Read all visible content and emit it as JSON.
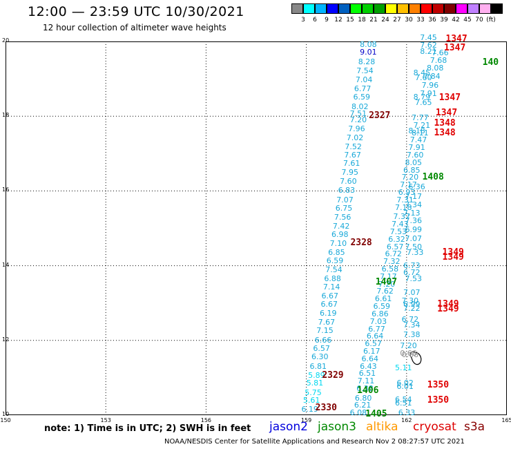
{
  "header": {
    "title": "12:00 — 23:59 UTC 10/30/2021",
    "subtitle": "12 hour collection of altimeter wave heights"
  },
  "legend": {
    "colors": [
      "#888888",
      "#00ffff",
      "#00b4ff",
      "#0000ff",
      "#0060c0",
      "#00ff00",
      "#00d000",
      "#00a000",
      "#ffff00",
      "#ffc000",
      "#ff8000",
      "#ff0000",
      "#c00000",
      "#800000",
      "#ff00ff",
      "#c080ff",
      "#ffb0f0",
      "#000000"
    ],
    "labels": [
      "3",
      "6",
      "9",
      "12",
      "15",
      "18",
      "21",
      "24",
      "27",
      "30",
      "33",
      "36",
      "39",
      "42",
      "45",
      "70",
      "(ft)"
    ]
  },
  "map": {
    "x_ticks": [
      "150",
      "153",
      "156",
      "159",
      "162",
      "165"
    ],
    "y_ticks": [
      "20",
      "18",
      "16",
      "14",
      "12",
      "10"
    ],
    "x_range": [
      150,
      165
    ],
    "y_range": [
      10,
      20
    ]
  },
  "measurements": [
    {
      "t": "8.08",
      "lon": 160.85,
      "lat": 19.9,
      "c": "#18a8d8"
    },
    {
      "t": "9.01",
      "lon": 160.85,
      "lat": 19.7,
      "c": "#0000c8"
    },
    {
      "t": "8.28",
      "lon": 160.8,
      "lat": 19.45,
      "c": "#18a8d8"
    },
    {
      "t": "7.54",
      "lon": 160.75,
      "lat": 19.2,
      "c": "#18a8d8"
    },
    {
      "t": "7.04",
      "lon": 160.72,
      "lat": 18.97,
      "c": "#18a8d8"
    },
    {
      "t": "6.77",
      "lon": 160.68,
      "lat": 18.73,
      "c": "#18a8d8"
    },
    {
      "t": "6.59",
      "lon": 160.65,
      "lat": 18.5,
      "c": "#18a8d8"
    },
    {
      "t": "8.02",
      "lon": 160.6,
      "lat": 18.25,
      "c": "#18a8d8"
    },
    {
      "t": "7.51",
      "lon": 160.55,
      "lat": 18.05,
      "c": "#18a8d8"
    },
    {
      "t": "7.20",
      "lon": 160.55,
      "lat": 17.9,
      "c": "#18a8d8"
    },
    {
      "t": "7.96",
      "lon": 160.5,
      "lat": 17.65,
      "c": "#18a8d8"
    },
    {
      "t": "7.02",
      "lon": 160.45,
      "lat": 17.42,
      "c": "#18a8d8"
    },
    {
      "t": "7.52",
      "lon": 160.4,
      "lat": 17.18,
      "c": "#18a8d8"
    },
    {
      "t": "7.67",
      "lon": 160.38,
      "lat": 16.95,
      "c": "#18a8d8"
    },
    {
      "t": "7.61",
      "lon": 160.35,
      "lat": 16.72,
      "c": "#18a8d8"
    },
    {
      "t": "7.95",
      "lon": 160.3,
      "lat": 16.48,
      "c": "#18a8d8"
    },
    {
      "t": "7.60",
      "lon": 160.25,
      "lat": 16.25,
      "c": "#18a8d8"
    },
    {
      "t": "6.83",
      "lon": 160.2,
      "lat": 16.0,
      "c": "#18a8d8"
    },
    {
      "t": "7.07",
      "lon": 160.15,
      "lat": 15.75,
      "c": "#18a8d8"
    },
    {
      "t": "6.75",
      "lon": 160.12,
      "lat": 15.52,
      "c": "#18a8d8"
    },
    {
      "t": "7.56",
      "lon": 160.08,
      "lat": 15.28,
      "c": "#18a8d8"
    },
    {
      "t": "7.42",
      "lon": 160.04,
      "lat": 15.05,
      "c": "#18a8d8"
    },
    {
      "t": "6.98",
      "lon": 160.0,
      "lat": 14.82,
      "c": "#18a8d8"
    },
    {
      "t": "7.10",
      "lon": 159.95,
      "lat": 14.58,
      "c": "#18a8d8"
    },
    {
      "t": "6.85",
      "lon": 159.9,
      "lat": 14.35,
      "c": "#18a8d8"
    },
    {
      "t": "6.59",
      "lon": 159.85,
      "lat": 14.12,
      "c": "#18a8d8"
    },
    {
      "t": "7.54",
      "lon": 159.82,
      "lat": 13.88,
      "c": "#18a8d8"
    },
    {
      "t": "6.88",
      "lon": 159.78,
      "lat": 13.65,
      "c": "#18a8d8"
    },
    {
      "t": "7.14",
      "lon": 159.75,
      "lat": 13.42,
      "c": "#18a8d8"
    },
    {
      "t": "6.67",
      "lon": 159.7,
      "lat": 13.18,
      "c": "#18a8d8"
    },
    {
      "t": "6.67",
      "lon": 159.68,
      "lat": 12.95,
      "c": "#18a8d8"
    },
    {
      "t": "6.19",
      "lon": 159.65,
      "lat": 12.72,
      "c": "#18a8d8"
    },
    {
      "t": "7.67",
      "lon": 159.6,
      "lat": 12.48,
      "c": "#18a8d8"
    },
    {
      "t": "7.15",
      "lon": 159.55,
      "lat": 12.25,
      "c": "#18a8d8"
    },
    {
      "t": "6.66",
      "lon": 159.5,
      "lat": 12.0,
      "c": "#18a8d8"
    },
    {
      "t": "6.57",
      "lon": 159.45,
      "lat": 11.78,
      "c": "#18a8d8"
    },
    {
      "t": "6.30",
      "lon": 159.4,
      "lat": 11.55,
      "c": "#18a8d8"
    },
    {
      "t": "6.81",
      "lon": 159.35,
      "lat": 11.3,
      "c": "#18a8d8"
    },
    {
      "t": "5.89",
      "lon": 159.3,
      "lat": 11.05,
      "c": "#00d8f0"
    },
    {
      "t": "5.81",
      "lon": 159.25,
      "lat": 10.85,
      "c": "#00d8f0"
    },
    {
      "t": "5.75",
      "lon": 159.2,
      "lat": 10.6,
      "c": "#00d8f0"
    },
    {
      "t": "5.61",
      "lon": 159.15,
      "lat": 10.38,
      "c": "#00d8f0"
    },
    {
      "t": "6.19",
      "lon": 159.1,
      "lat": 10.15,
      "c": "#18a8d8"
    },
    {
      "t": "6.08",
      "lon": 160.55,
      "lat": 10.05,
      "c": "#18a8d8"
    },
    {
      "t": "6.21",
      "lon": 160.68,
      "lat": 10.25,
      "c": "#18a8d8"
    },
    {
      "t": "6.80",
      "lon": 160.7,
      "lat": 10.45,
      "c": "#18a8d8"
    },
    {
      "t": "6.38",
      "lon": 160.75,
      "lat": 10.7,
      "c": "#18a8d8"
    },
    {
      "t": "7.11",
      "lon": 160.78,
      "lat": 10.9,
      "c": "#18a8d8"
    },
    {
      "t": "6.51",
      "lon": 160.82,
      "lat": 11.1,
      "c": "#18a8d8"
    },
    {
      "t": "6.43",
      "lon": 160.85,
      "lat": 11.3,
      "c": "#18a8d8"
    },
    {
      "t": "6.64",
      "lon": 160.9,
      "lat": 11.5,
      "c": "#18a8d8"
    },
    {
      "t": "6.17",
      "lon": 160.95,
      "lat": 11.7,
      "c": "#18a8d8"
    },
    {
      "t": "6.57",
      "lon": 161.0,
      "lat": 11.9,
      "c": "#18a8d8"
    },
    {
      "t": "6.64",
      "lon": 161.05,
      "lat": 12.1,
      "c": "#18a8d8"
    },
    {
      "t": "6.77",
      "lon": 161.1,
      "lat": 12.3,
      "c": "#18a8d8"
    },
    {
      "t": "7.03",
      "lon": 161.15,
      "lat": 12.5,
      "c": "#18a8d8"
    },
    {
      "t": "6.86",
      "lon": 161.2,
      "lat": 12.7,
      "c": "#18a8d8"
    },
    {
      "t": "6.59",
      "lon": 161.25,
      "lat": 12.9,
      "c": "#18a8d8"
    },
    {
      "t": "6.61",
      "lon": 161.3,
      "lat": 13.1,
      "c": "#18a8d8"
    },
    {
      "t": "7.62",
      "lon": 161.35,
      "lat": 13.3,
      "c": "#18a8d8"
    },
    {
      "t": "7.20",
      "lon": 161.4,
      "lat": 13.5,
      "c": "#18a8d8"
    },
    {
      "t": "7.17",
      "lon": 161.45,
      "lat": 13.7,
      "c": "#18a8d8"
    },
    {
      "t": "6.58",
      "lon": 161.5,
      "lat": 13.9,
      "c": "#18a8d8"
    },
    {
      "t": "7.32",
      "lon": 161.55,
      "lat": 14.1,
      "c": "#18a8d8"
    },
    {
      "t": "6.72",
      "lon": 161.6,
      "lat": 14.3,
      "c": "#18a8d8"
    },
    {
      "t": "6.57",
      "lon": 161.65,
      "lat": 14.5,
      "c": "#18a8d8"
    },
    {
      "t": "6.32",
      "lon": 161.7,
      "lat": 14.7,
      "c": "#18a8d8"
    },
    {
      "t": "7.53",
      "lon": 161.75,
      "lat": 14.9,
      "c": "#18a8d8"
    },
    {
      "t": "7.43",
      "lon": 161.8,
      "lat": 15.1,
      "c": "#18a8d8"
    },
    {
      "t": "7.37",
      "lon": 161.85,
      "lat": 15.3,
      "c": "#18a8d8"
    },
    {
      "t": "7.18",
      "lon": 161.9,
      "lat": 15.55,
      "c": "#18a8d8"
    },
    {
      "t": "7.31",
      "lon": 161.95,
      "lat": 15.75,
      "c": "#18a8d8"
    },
    {
      "t": "6.93",
      "lon": 162.0,
      "lat": 15.95,
      "c": "#18a8d8"
    },
    {
      "t": "7.17",
      "lon": 162.05,
      "lat": 16.15,
      "c": "#18a8d8"
    },
    {
      "t": "7.20",
      "lon": 162.1,
      "lat": 16.35,
      "c": "#18a8d8"
    },
    {
      "t": "6.85",
      "lon": 162.15,
      "lat": 16.55,
      "c": "#18a8d8"
    },
    {
      "t": "8.05",
      "lon": 162.2,
      "lat": 16.75,
      "c": "#18a8d8"
    },
    {
      "t": "7.60",
      "lon": 162.25,
      "lat": 16.95,
      "c": "#18a8d8"
    },
    {
      "t": "7.91",
      "lon": 162.3,
      "lat": 17.15,
      "c": "#18a8d8"
    },
    {
      "t": "7.47",
      "lon": 162.35,
      "lat": 17.35,
      "c": "#18a8d8"
    },
    {
      "t": "8.11",
      "lon": 162.4,
      "lat": 17.55,
      "c": "#18a8d8"
    },
    {
      "t": "8.18",
      "lon": 162.3,
      "lat": 17.6,
      "c": "#18a8d8"
    },
    {
      "t": "7.21",
      "lon": 162.45,
      "lat": 17.75,
      "c": "#18a8d8"
    },
    {
      "t": "7.77",
      "lon": 162.4,
      "lat": 17.95,
      "c": "#18a8d8"
    },
    {
      "t": "7.65",
      "lon": 162.5,
      "lat": 18.35,
      "c": "#18a8d8"
    },
    {
      "t": "8.79",
      "lon": 162.45,
      "lat": 18.5,
      "c": "#18a8d8"
    },
    {
      "t": "7.91",
      "lon": 162.65,
      "lat": 18.6,
      "c": "#18a8d8"
    },
    {
      "t": "7.96",
      "lon": 162.7,
      "lat": 18.82,
      "c": "#18a8d8"
    },
    {
      "t": "7.60",
      "lon": 162.5,
      "lat": 19.02,
      "c": "#18a8d8"
    },
    {
      "t": "8.45",
      "lon": 162.45,
      "lat": 19.15,
      "c": "#18a8d8"
    },
    {
      "t": "7.84",
      "lon": 162.75,
      "lat": 19.05,
      "c": "#18a8d8"
    },
    {
      "t": "8.08",
      "lon": 162.85,
      "lat": 19.28,
      "c": "#18a8d8"
    },
    {
      "t": "7.68",
      "lon": 162.95,
      "lat": 19.48,
      "c": "#18a8d8"
    },
    {
      "t": "7.66",
      "lon": 163.0,
      "lat": 19.68,
      "c": "#18a8d8"
    },
    {
      "t": "8.21",
      "lon": 162.65,
      "lat": 19.72,
      "c": "#18a8d8"
    },
    {
      "t": "7.62",
      "lon": 162.65,
      "lat": 19.88,
      "c": "#18a8d8"
    },
    {
      "t": "7.45",
      "lon": 162.65,
      "lat": 20.1,
      "c": "#18a8d8"
    },
    {
      "t": "6.36",
      "lon": 162.3,
      "lat": 16.1,
      "c": "#18a8d8"
    },
    {
      "t": "7.17",
      "lon": 162.2,
      "lat": 15.85,
      "c": "#18a8d8"
    },
    {
      "t": "7.34",
      "lon": 162.2,
      "lat": 15.62,
      "c": "#18a8d8"
    },
    {
      "t": "7.13",
      "lon": 162.15,
      "lat": 15.4,
      "c": "#18a8d8"
    },
    {
      "t": "7.36",
      "lon": 162.2,
      "lat": 15.2,
      "c": "#18a8d8"
    },
    {
      "t": "6.99",
      "lon": 162.2,
      "lat": 14.95,
      "c": "#18a8d8"
    },
    {
      "t": "7.07",
      "lon": 162.2,
      "lat": 14.72,
      "c": "#18a8d8"
    },
    {
      "t": "7.50",
      "lon": 162.2,
      "lat": 14.5,
      "c": "#18a8d8"
    },
    {
      "t": "7.33",
      "lon": 162.25,
      "lat": 14.35,
      "c": "#18a8d8"
    },
    {
      "t": "6.73",
      "lon": 162.15,
      "lat": 14.0,
      "c": "#18a8d8"
    },
    {
      "t": "6.72",
      "lon": 162.15,
      "lat": 13.8,
      "c": "#18a8d8"
    },
    {
      "t": "7.53",
      "lon": 162.2,
      "lat": 13.65,
      "c": "#18a8d8"
    },
    {
      "t": "7.07",
      "lon": 162.15,
      "lat": 13.28,
      "c": "#18a8d8"
    },
    {
      "t": "7.30",
      "lon": 162.1,
      "lat": 13.05,
      "c": "#18a8d8"
    },
    {
      "t": "6.99",
      "lon": 162.15,
      "lat": 12.95,
      "c": "#18a8d8"
    },
    {
      "t": "7.22",
      "lon": 162.15,
      "lat": 12.85,
      "c": "#18a8d8"
    },
    {
      "t": "6.72",
      "lon": 162.1,
      "lat": 12.55,
      "c": "#18a8d8"
    },
    {
      "t": "7.34",
      "lon": 162.15,
      "lat": 12.4,
      "c": "#18a8d8"
    },
    {
      "t": "7.38",
      "lon": 162.15,
      "lat": 12.15,
      "c": "#18a8d8"
    },
    {
      "t": "7.20",
      "lon": 162.05,
      "lat": 11.85,
      "c": "#18a8d8"
    },
    {
      "t": "0.66",
      "lon": 162.05,
      "lat": 11.65,
      "c": "#909090"
    },
    {
      "t": "0.68",
      "lon": 162.1,
      "lat": 11.6,
      "c": "#909090"
    },
    {
      "t": "5.11",
      "lon": 161.9,
      "lat": 11.25,
      "c": "#00d8f0"
    },
    {
      "t": "6.02",
      "lon": 161.95,
      "lat": 10.85,
      "c": "#18a8d8"
    },
    {
      "t": "6.01",
      "lon": 161.95,
      "lat": 10.75,
      "c": "#18a8d8"
    },
    {
      "t": "6.54",
      "lon": 161.9,
      "lat": 10.4,
      "c": "#18a8d8"
    },
    {
      "t": "6.51",
      "lon": 161.9,
      "lat": 10.32,
      "c": "#18a8d8"
    },
    {
      "t": "6.33",
      "lon": 162.0,
      "lat": 10.05,
      "c": "#18a8d8"
    }
  ],
  "passes": [
    {
      "t": "1347",
      "lon": 163.5,
      "lat": 20.05,
      "c": "#e00000"
    },
    {
      "t": "1347",
      "lon": 163.45,
      "lat": 19.82,
      "c": "#e00000"
    },
    {
      "t": "140",
      "lon": 164.6,
      "lat": 19.42,
      "c": "#008800"
    },
    {
      "t": "1347",
      "lon": 163.3,
      "lat": 18.48,
      "c": "#e00000"
    },
    {
      "t": "1347",
      "lon": 163.2,
      "lat": 18.08,
      "c": "#e00000"
    },
    {
      "t": "1348",
      "lon": 163.15,
      "lat": 17.8,
      "c": "#e00000"
    },
    {
      "t": "1348",
      "lon": 163.15,
      "lat": 17.55,
      "c": "#e00000"
    },
    {
      "t": "2327",
      "lon": 161.2,
      "lat": 18.0,
      "c": "#800000"
    },
    {
      "t": "1408",
      "lon": 162.8,
      "lat": 16.35,
      "c": "#008800"
    },
    {
      "t": "2328",
      "lon": 160.65,
      "lat": 14.6,
      "c": "#800000"
    },
    {
      "t": "1349",
      "lon": 163.4,
      "lat": 14.35,
      "c": "#e00000"
    },
    {
      "t": "1349",
      "lon": 163.4,
      "lat": 14.22,
      "c": "#e00000"
    },
    {
      "t": "1407",
      "lon": 161.4,
      "lat": 13.55,
      "c": "#008800"
    },
    {
      "t": "1349",
      "lon": 163.25,
      "lat": 12.95,
      "c": "#e00000"
    },
    {
      "t": "1349",
      "lon": 163.25,
      "lat": 12.82,
      "c": "#e00000"
    },
    {
      "t": "2329",
      "lon": 159.8,
      "lat": 11.05,
      "c": "#800000"
    },
    {
      "t": "1406",
      "lon": 160.85,
      "lat": 10.65,
      "c": "#008800"
    },
    {
      "t": "1350",
      "lon": 162.95,
      "lat": 10.8,
      "c": "#e00000"
    },
    {
      "t": "1350",
      "lon": 162.95,
      "lat": 10.38,
      "c": "#e00000"
    },
    {
      "t": "2330",
      "lon": 159.6,
      "lat": 10.18,
      "c": "#800000"
    },
    {
      "t": "1405",
      "lon": 161.1,
      "lat": 10.02,
      "c": "#008800"
    }
  ],
  "footer": {
    "note": "note: 1) Time is in UTC; 2) SWH is in feet",
    "satellites": [
      {
        "name": "jason2",
        "color": "#0000dd"
      },
      {
        "name": "jason3",
        "color": "#008800"
      },
      {
        "name": "altika",
        "color": "#ff9900"
      },
      {
        "name": "cryosat",
        "color": "#dd0000"
      },
      {
        "name": "s3a",
        "color": "#880000"
      }
    ],
    "credit": "NOAA/NESDIS Center for Satellite Applications and Research    Nov  2 08:27:57 UTC 2021"
  }
}
